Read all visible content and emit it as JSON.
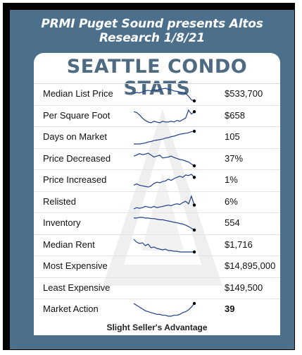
{
  "header": {
    "title": "PRMI Puget Sound presents Altos Research 1/8/21"
  },
  "card": {
    "title": "SEATTLE CONDO STATS"
  },
  "rows": [
    {
      "label": "Median List Price",
      "value": "$533,700",
      "spark": [
        50,
        52,
        51,
        53,
        55,
        56,
        55,
        57,
        56,
        58,
        59,
        60,
        58,
        57,
        55,
        54,
        53,
        52,
        50,
        45,
        38,
        36
      ],
      "sparkline": true
    },
    {
      "label": "Per Square Foot",
      "value": "$658",
      "spark": [
        58,
        57,
        54,
        50,
        47,
        45,
        44,
        46,
        45,
        44,
        46,
        45,
        45,
        46,
        45,
        47,
        46,
        48,
        50,
        60,
        55,
        58
      ],
      "sparkline": true
    },
    {
      "label": "Days on Market",
      "value": "105",
      "spark": [
        40,
        40,
        40,
        41,
        42,
        44,
        45,
        47,
        48,
        49,
        50,
        52,
        53,
        55,
        56,
        58,
        60,
        61,
        62,
        63,
        65,
        66
      ],
      "sparkline": true
    },
    {
      "label": "Price Decreased",
      "value": "37%",
      "spark": [
        60,
        62,
        65,
        63,
        64,
        66,
        62,
        58,
        60,
        62,
        56,
        57,
        58,
        60,
        57,
        55,
        53,
        52,
        50,
        48,
        44,
        40
      ],
      "sparkline": true
    },
    {
      "label": "Price Increased",
      "value": "1%",
      "spark": [
        45,
        47,
        45,
        44,
        43,
        42,
        44,
        48,
        50,
        49,
        51,
        52,
        55,
        53,
        56,
        58,
        60,
        58,
        62,
        61,
        63,
        58
      ],
      "sparkline": true
    },
    {
      "label": "Relisted",
      "value": "6%",
      "spark": [
        40,
        42,
        41,
        42,
        44,
        43,
        42,
        44,
        42,
        43,
        44,
        45,
        46,
        45,
        47,
        48,
        47,
        50,
        52,
        48,
        60,
        46
      ],
      "sparkline": true
    },
    {
      "label": "Inventory",
      "value": "554",
      "spark": [
        64,
        64,
        65,
        65,
        64,
        64,
        63,
        63,
        62,
        61,
        61,
        60,
        59,
        58,
        57,
        56,
        55,
        54,
        52,
        50,
        47,
        44
      ],
      "sparkline": true
    },
    {
      "label": "Median Rent",
      "value": "$1,716",
      "spark": [
        62,
        58,
        56,
        57,
        53,
        55,
        50,
        51,
        49,
        48,
        47,
        48,
        46,
        46,
        45,
        45,
        44,
        44,
        44,
        44,
        44,
        44
      ],
      "sparkline": true
    },
    {
      "label": "Most Expensive",
      "value": "$14,895,000",
      "sparkline": false
    },
    {
      "label": "Least Expensive",
      "value": "$149,500",
      "sparkline": false
    },
    {
      "label": "Market Action",
      "value": "39",
      "bold": true,
      "spark": [
        50,
        48,
        46,
        44,
        42,
        41,
        40,
        39,
        38,
        38,
        37,
        37,
        36,
        36,
        37,
        37,
        38,
        40,
        41,
        43,
        46,
        50
      ],
      "sparkline": true
    }
  ],
  "footer": {
    "text": "Slight Seller's Advantage"
  },
  "colors": {
    "panel": "#4c6f8b",
    "title": "#4e6b82",
    "spark": "#1f3f8a"
  }
}
